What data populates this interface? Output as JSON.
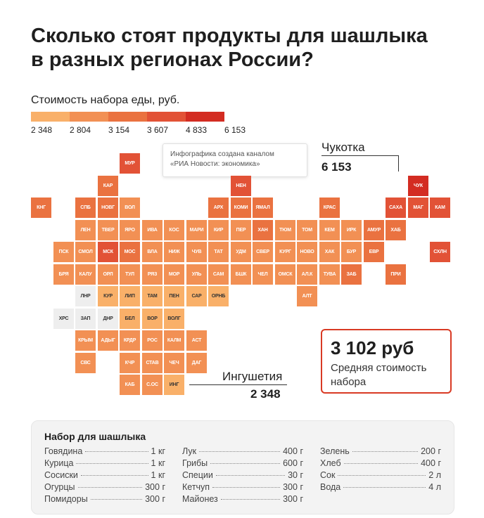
{
  "title": {
    "line1": "Сколько стоят продукты для шашлыка",
    "line2": "в разных регионах России?"
  },
  "legend": {
    "title": "Стоимость набора еды, руб.",
    "ticks": [
      "2 348",
      "2 804",
      "3 154",
      "3 607",
      "4 833",
      "6 153"
    ],
    "colors": [
      "#f9b069",
      "#f29054",
      "#ea7240",
      "#e25236",
      "#d32c22"
    ]
  },
  "credit": {
    "line1": "Инфографика создана каналом",
    "line2": "«РИА Новости: экономика»"
  },
  "callout_max": {
    "region": "Чукотка",
    "value": "6 153"
  },
  "callout_min": {
    "region": "Ингушетия",
    "value": "2 348"
  },
  "average": {
    "value": "3 102 руб",
    "label_line1": "Средняя стоимость",
    "label_line2": "набора"
  },
  "palette": {
    "c0": "#eeeeee",
    "c1": "#f9b069",
    "c2": "#f29054",
    "c3": "#ea7240",
    "c4": "#e25236",
    "c5": "#d32c22"
  },
  "map": [
    {
      "code": "МУР",
      "col": 4,
      "row": 0,
      "c": "c4"
    },
    {
      "code": "КАР",
      "col": 3,
      "row": 1,
      "c": "c3"
    },
    {
      "code": "НЕН",
      "col": 9,
      "row": 1,
      "c": "c4"
    },
    {
      "code": "ЧУК",
      "col": 17,
      "row": 1,
      "c": "c5"
    },
    {
      "code": "КНГ",
      "col": 0,
      "row": 2,
      "c": "c3"
    },
    {
      "code": "СПБ",
      "col": 2,
      "row": 2,
      "c": "c3"
    },
    {
      "code": "НОВГ",
      "col": 3,
      "row": 2,
      "c": "c3"
    },
    {
      "code": "ВОЛ",
      "col": 4,
      "row": 2,
      "c": "c2"
    },
    {
      "code": "АРХ",
      "col": 8,
      "row": 2,
      "c": "c3"
    },
    {
      "code": "КОМИ",
      "col": 9,
      "row": 2,
      "c": "c3"
    },
    {
      "code": "ЯМАЛ",
      "col": 10,
      "row": 2,
      "c": "c3"
    },
    {
      "code": "КРАС",
      "col": 13,
      "row": 2,
      "c": "c3"
    },
    {
      "code": "САХА",
      "col": 16,
      "row": 2,
      "c": "c4"
    },
    {
      "code": "МАГ",
      "col": 17,
      "row": 2,
      "c": "c4"
    },
    {
      "code": "КАМ",
      "col": 18,
      "row": 2,
      "c": "c4"
    },
    {
      "code": "ЛЕН",
      "col": 2,
      "row": 3,
      "c": "c2"
    },
    {
      "code": "ТВЕР",
      "col": 3,
      "row": 3,
      "c": "c2"
    },
    {
      "code": "ЯРО",
      "col": 4,
      "row": 3,
      "c": "c2"
    },
    {
      "code": "ИВА",
      "col": 5,
      "row": 3,
      "c": "c2"
    },
    {
      "code": "КОС",
      "col": 6,
      "row": 3,
      "c": "c2"
    },
    {
      "code": "МАРИ",
      "col": 7,
      "row": 3,
      "c": "c2"
    },
    {
      "code": "КИР",
      "col": 8,
      "row": 3,
      "c": "c2"
    },
    {
      "code": "ПЕР",
      "col": 9,
      "row": 3,
      "c": "c2"
    },
    {
      "code": "ХАН",
      "col": 10,
      "row": 3,
      "c": "c3"
    },
    {
      "code": "ТЮМ",
      "col": 11,
      "row": 3,
      "c": "c2"
    },
    {
      "code": "ТОМ",
      "col": 12,
      "row": 3,
      "c": "c2"
    },
    {
      "code": "КЕМ",
      "col": 13,
      "row": 3,
      "c": "c2"
    },
    {
      "code": "ИРК",
      "col": 14,
      "row": 3,
      "c": "c2"
    },
    {
      "code": "АМУР",
      "col": 15,
      "row": 3,
      "c": "c3"
    },
    {
      "code": "ХАБ",
      "col": 16,
      "row": 3,
      "c": "c3"
    },
    {
      "code": "ПСК",
      "col": 1,
      "row": 4,
      "c": "c2"
    },
    {
      "code": "СМОЛ",
      "col": 2,
      "row": 4,
      "c": "c2"
    },
    {
      "code": "МСК",
      "col": 3,
      "row": 4,
      "c": "c4"
    },
    {
      "code": "МОС",
      "col": 4,
      "row": 4,
      "c": "c3"
    },
    {
      "code": "ВЛА",
      "col": 5,
      "row": 4,
      "c": "c2"
    },
    {
      "code": "НИЖ",
      "col": 6,
      "row": 4,
      "c": "c2"
    },
    {
      "code": "ЧУВ",
      "col": 7,
      "row": 4,
      "c": "c2"
    },
    {
      "code": "ТАТ",
      "col": 8,
      "row": 4,
      "c": "c2"
    },
    {
      "code": "УДМ",
      "col": 9,
      "row": 4,
      "c": "c2"
    },
    {
      "code": "СВЕР",
      "col": 10,
      "row": 4,
      "c": "c2"
    },
    {
      "code": "КУРГ",
      "col": 11,
      "row": 4,
      "c": "c2"
    },
    {
      "code": "НОВО",
      "col": 12,
      "row": 4,
      "c": "c2"
    },
    {
      "code": "ХАК",
      "col": 13,
      "row": 4,
      "c": "c2"
    },
    {
      "code": "БУР",
      "col": 14,
      "row": 4,
      "c": "c2"
    },
    {
      "code": "ЕВР",
      "col": 15,
      "row": 4,
      "c": "c3"
    },
    {
      "code": "СХЛН",
      "col": 18,
      "row": 4,
      "c": "c4"
    },
    {
      "code": "БРЯ",
      "col": 1,
      "row": 5,
      "c": "c2"
    },
    {
      "code": "КАЛУ",
      "col": 2,
      "row": 5,
      "c": "c2"
    },
    {
      "code": "ОРЛ",
      "col": 3,
      "row": 5,
      "c": "c2"
    },
    {
      "code": "ТУЛ",
      "col": 4,
      "row": 5,
      "c": "c2"
    },
    {
      "code": "РЯЗ",
      "col": 5,
      "row": 5,
      "c": "c2"
    },
    {
      "code": "МОР",
      "col": 6,
      "row": 5,
      "c": "c2"
    },
    {
      "code": "УЛЬ",
      "col": 7,
      "row": 5,
      "c": "c2"
    },
    {
      "code": "САМ",
      "col": 8,
      "row": 5,
      "c": "c2"
    },
    {
      "code": "БШК",
      "col": 9,
      "row": 5,
      "c": "c2"
    },
    {
      "code": "ЧЕЛ",
      "col": 10,
      "row": 5,
      "c": "c2"
    },
    {
      "code": "ОМСК",
      "col": 11,
      "row": 5,
      "c": "c2"
    },
    {
      "code": "АЛ.К",
      "col": 12,
      "row": 5,
      "c": "c2"
    },
    {
      "code": "ТУВА",
      "col": 13,
      "row": 5,
      "c": "c2"
    },
    {
      "code": "ЗАБ",
      "col": 14,
      "row": 5,
      "c": "c3"
    },
    {
      "code": "ПРИ",
      "col": 16,
      "row": 5,
      "c": "c3"
    },
    {
      "code": "ЛНР",
      "col": 2,
      "row": 6,
      "c": "c0"
    },
    {
      "code": "КУР",
      "col": 3,
      "row": 6,
      "c": "c1"
    },
    {
      "code": "ЛИП",
      "col": 4,
      "row": 6,
      "c": "c1"
    },
    {
      "code": "ТАМ",
      "col": 5,
      "row": 6,
      "c": "c1"
    },
    {
      "code": "ПЕН",
      "col": 6,
      "row": 6,
      "c": "c1"
    },
    {
      "code": "САР",
      "col": 7,
      "row": 6,
      "c": "c1"
    },
    {
      "code": "ОРНБ",
      "col": 8,
      "row": 6,
      "c": "c1"
    },
    {
      "code": "АЛТ",
      "col": 12,
      "row": 6,
      "c": "c2"
    },
    {
      "code": "ХРС",
      "col": 1,
      "row": 7,
      "c": "c0"
    },
    {
      "code": "ЗАП",
      "col": 2,
      "row": 7,
      "c": "c0"
    },
    {
      "code": "ДНР",
      "col": 3,
      "row": 7,
      "c": "c0"
    },
    {
      "code": "БЕЛ",
      "col": 4,
      "row": 7,
      "c": "c1"
    },
    {
      "code": "ВОР",
      "col": 5,
      "row": 7,
      "c": "c1"
    },
    {
      "code": "ВОЛГ",
      "col": 6,
      "row": 7,
      "c": "c1"
    },
    {
      "code": "КРЫМ",
      "col": 2,
      "row": 8,
      "c": "c2"
    },
    {
      "code": "АДЫГ",
      "col": 3,
      "row": 8,
      "c": "c2"
    },
    {
      "code": "КРДР",
      "col": 4,
      "row": 8,
      "c": "c2"
    },
    {
      "code": "РОС",
      "col": 5,
      "row": 8,
      "c": "c2"
    },
    {
      "code": "КАЛМ",
      "col": 6,
      "row": 8,
      "c": "c2"
    },
    {
      "code": "АСТ",
      "col": 7,
      "row": 8,
      "c": "c2"
    },
    {
      "code": "СВС",
      "col": 2,
      "row": 9,
      "c": "c2"
    },
    {
      "code": "КЧР",
      "col": 4,
      "row": 9,
      "c": "c2"
    },
    {
      "code": "СТАВ",
      "col": 5,
      "row": 9,
      "c": "c2"
    },
    {
      "code": "ЧЕЧ",
      "col": 6,
      "row": 9,
      "c": "c2"
    },
    {
      "code": "ДАГ",
      "col": 7,
      "row": 9,
      "c": "c2"
    },
    {
      "code": "КАБ",
      "col": 4,
      "row": 10,
      "c": "c2"
    },
    {
      "code": "С.ОС",
      "col": 5,
      "row": 10,
      "c": "c2"
    },
    {
      "code": "ИНГ",
      "col": 6,
      "row": 10,
      "c": "c1"
    }
  ],
  "kit": {
    "title": "Набор для шашлыка",
    "columns": [
      [
        {
          "name": "Говядина",
          "qty": "1 кг"
        },
        {
          "name": "Курица",
          "qty": "1 кг"
        },
        {
          "name": "Сосиски",
          "qty": "1 кг"
        },
        {
          "name": "Огурцы",
          "qty": "300 г"
        },
        {
          "name": "Помидоры",
          "qty": "300 г"
        }
      ],
      [
        {
          "name": "Лук",
          "qty": "400 г"
        },
        {
          "name": "Грибы",
          "qty": "600 г"
        },
        {
          "name": "Специи",
          "qty": "30 г"
        },
        {
          "name": "Кетчуп",
          "qty": "300 г"
        },
        {
          "name": "Майонез",
          "qty": "300 г"
        }
      ],
      [
        {
          "name": "Зелень",
          "qty": "200 г"
        },
        {
          "name": "Хлеб",
          "qty": "400 г"
        },
        {
          "name": "Сок",
          "qty": "2 л"
        },
        {
          "name": "Вода",
          "qty": "4 л"
        }
      ]
    ]
  }
}
